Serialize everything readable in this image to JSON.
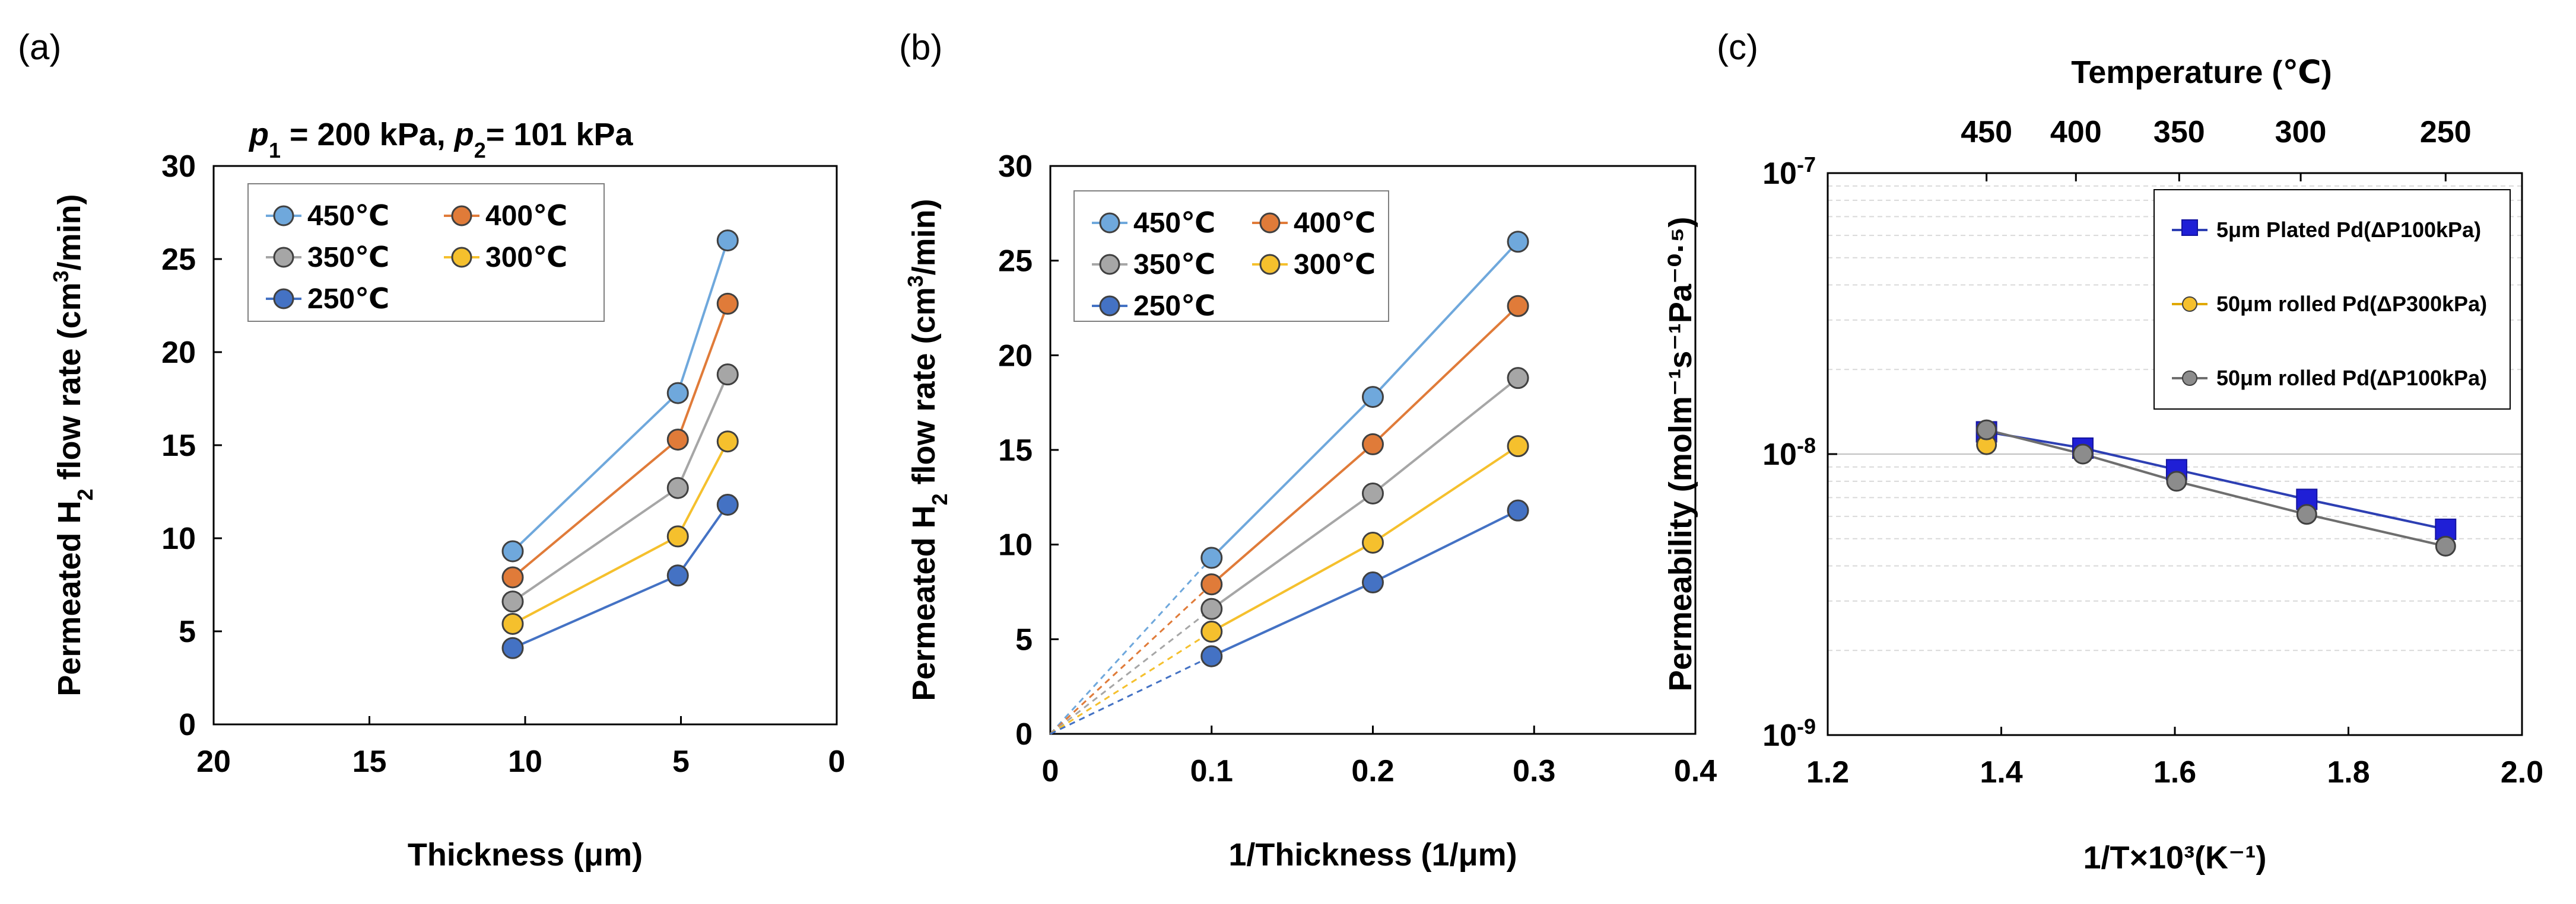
{
  "panels": [
    {
      "label": "(a)",
      "chart_data": {
        "type": "line",
        "title": "p1 = 200 kPa, p2 = 101 kPa",
        "annotation": {
          "p1_symbol": "p",
          "p1_sub": "1",
          "p1_value": " = 200 kPa,",
          "p2_symbol": "p",
          "p2_sub": "2",
          "p2_value": "= 101 kPa"
        },
        "xlabel": "Thickness (μm)",
        "ylabel_parts": [
          "Permeated H",
          "2",
          " flow rate (cm",
          "3",
          "/min)"
        ],
        "xlim": [
          20,
          0
        ],
        "ylim": [
          0,
          30
        ],
        "xticks": [
          "20",
          "15",
          "10",
          "5",
          "0"
        ],
        "yticks": [
          "0",
          "5",
          "10",
          "15",
          "20",
          "25",
          "30"
        ],
        "x": [
          10.4,
          5.1,
          3.5
        ],
        "series": [
          {
            "name": "450℃",
            "color": "#6fa8dc",
            "values": [
              9.3,
              17.8,
              26.0
            ]
          },
          {
            "name": "400℃",
            "color": "#e07b39",
            "values": [
              7.9,
              15.3,
              22.6
            ]
          },
          {
            "name": "350℃",
            "color": "#a6a6a6",
            "values": [
              6.6,
              12.7,
              18.8
            ]
          },
          {
            "name": "300℃",
            "color": "#f5c02d",
            "values": [
              5.4,
              10.1,
              15.2
            ]
          },
          {
            "name": "250℃",
            "color": "#4472c4",
            "values": [
              4.1,
              8.0,
              11.8
            ]
          }
        ]
      }
    },
    {
      "label": "(b)",
      "chart_data": {
        "type": "line",
        "xlabel": "1/Thickness (1/μm)",
        "ylabel_parts": [
          "Permeated H",
          "2",
          " flow rate (cm",
          "3",
          "/min)"
        ],
        "xlim": [
          0,
          0.4
        ],
        "ylim": [
          0,
          30
        ],
        "xticks": [
          "0",
          "0.1",
          "0.2",
          "0.3",
          "0.4"
        ],
        "yticks": [
          "0",
          "5",
          "10",
          "15",
          "20",
          "25",
          "30"
        ],
        "x": [
          0.1,
          0.2,
          0.29
        ],
        "extrapolation_origin": [
          0,
          0
        ],
        "series": [
          {
            "name": "450℃",
            "color": "#6fa8dc",
            "values": [
              9.3,
              17.8,
              26.0
            ]
          },
          {
            "name": "400℃",
            "color": "#e07b39",
            "values": [
              7.9,
              15.3,
              22.6
            ]
          },
          {
            "name": "350℃",
            "color": "#a6a6a6",
            "values": [
              6.6,
              12.7,
              18.8
            ]
          },
          {
            "name": "300℃",
            "color": "#f5c02d",
            "values": [
              5.4,
              10.1,
              15.2
            ]
          },
          {
            "name": "250℃",
            "color": "#4472c4",
            "values": [
              4.1,
              8.0,
              11.8
            ]
          }
        ]
      }
    },
    {
      "label": "(c)",
      "chart_data": {
        "type": "line",
        "yscale": "log",
        "xlabel": "1/T×10³(K⁻¹)",
        "ylabel": "Permeability (molm⁻¹s⁻¹Pa⁻⁰·⁵)",
        "top_xlabel": "Temperature (℃)",
        "top_xticks": [
          {
            "label": "450",
            "x": 1.383
          },
          {
            "label": "400",
            "x": 1.486
          },
          {
            "label": "350",
            "x": 1.605
          },
          {
            "label": "300",
            "x": 1.745
          },
          {
            "label": "250",
            "x": 1.912
          }
        ],
        "xlim": [
          1.2,
          2.0
        ],
        "ylim": [
          1e-09,
          1e-07
        ],
        "xticks": [
          "1.2",
          "1.4",
          "1.6",
          "1.8",
          "2.0"
        ],
        "yticks": [
          {
            "base": "10",
            "exp": "-9"
          },
          {
            "base": "10",
            "exp": "-8"
          },
          {
            "base": "10",
            "exp": "-7"
          }
        ],
        "series": [
          {
            "name": "5μm Plated Pd(ΔP100kPa)",
            "color": "#1f1fd6",
            "line": "#2d3fb3",
            "marker": "square",
            "x": [
              1.383,
              1.494,
              1.602,
              1.752,
              1.912
            ],
            "values": [
              1.2e-08,
              1.05e-08,
              8.8e-09,
              6.9e-09,
              5.4e-09
            ]
          },
          {
            "name": "50μm rolled Pd(ΔP300kPa)",
            "color": "#f5c02d",
            "line": "#e0a800",
            "marker": "circle",
            "x": [
              1.383
            ],
            "values": [
              1.08e-08
            ]
          },
          {
            "name": "50μm rolled Pd(ΔP100kPa)",
            "color": "#8c8c8c",
            "line": "#6e6e6e",
            "marker": "circle",
            "x": [
              1.383,
              1.494,
              1.602,
              1.752,
              1.912
            ],
            "values": [
              1.22e-08,
              1e-08,
              8e-09,
              6.1e-09,
              4.7e-09
            ]
          }
        ]
      }
    }
  ]
}
